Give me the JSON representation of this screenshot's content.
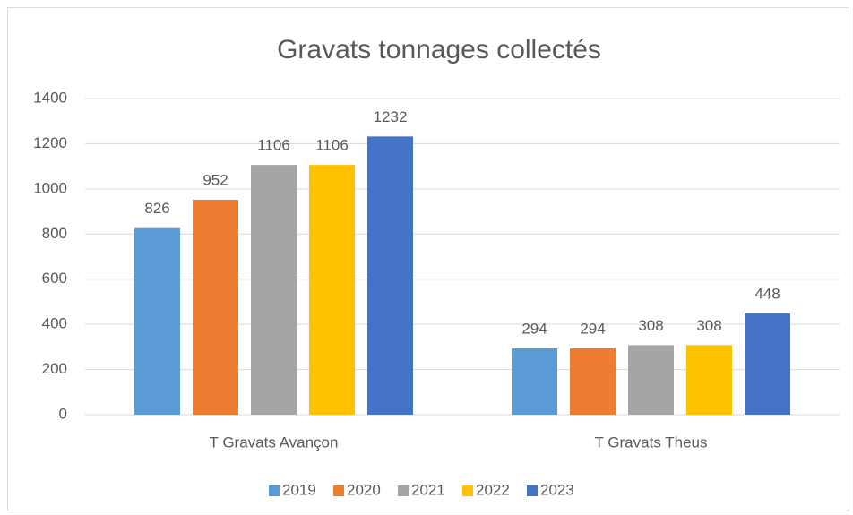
{
  "chart_data": {
    "type": "bar",
    "title": "Gravats tonnages collectés",
    "categories": [
      "T Gravats Avançon",
      "T Gravats Theus"
    ],
    "series": [
      {
        "name": "2019",
        "color": "#5b9bd5",
        "values": [
          826,
          294
        ]
      },
      {
        "name": "2020",
        "color": "#ed7d31",
        "values": [
          952,
          294
        ]
      },
      {
        "name": "2021",
        "color": "#a5a5a5",
        "values": [
          1106,
          308
        ]
      },
      {
        "name": "2022",
        "color": "#ffc000",
        "values": [
          1106,
          308
        ]
      },
      {
        "name": "2023",
        "color": "#4472c4",
        "values": [
          1232,
          448
        ]
      }
    ],
    "ylim": [
      0,
      1400
    ],
    "yticks": [
      0,
      200,
      400,
      600,
      800,
      1000,
      1200,
      1400
    ],
    "grid": true,
    "legend": "bottom"
  }
}
